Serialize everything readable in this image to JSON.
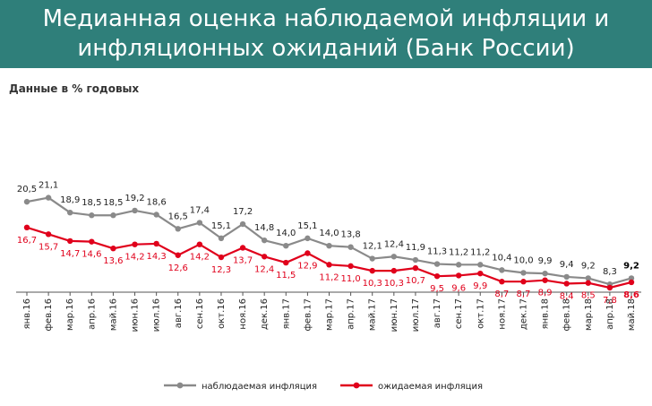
{
  "title_lines": [
    "Медианная оценка наблюдаемой инфляции и",
    "инфляционных ожиданий (Банк России)"
  ],
  "colors": {
    "title_band": "#2f7f7a",
    "observed": "#8a8a8a",
    "expected": "#e0001b"
  },
  "chart_data": {
    "type": "line",
    "subtitle": "Данные в % годовых",
    "categories": [
      "янв.16",
      "фев.16",
      "мар.16",
      "апр.16",
      "май.16",
      "июн.16",
      "июл.16",
      "авг.16",
      "сен.16",
      "окт.16",
      "ноя.16",
      "дек.16",
      "янв.17",
      "фев.17",
      "мар.17",
      "апр.17",
      "май.17",
      "июн.17",
      "июл.17",
      "авг.17",
      "сен.17",
      "окт.17",
      "ноя.17",
      "дек.17",
      "янв.18",
      "фев.18",
      "мар.18",
      "апр.18",
      "май.18"
    ],
    "series": [
      {
        "name": "наблюдаемая инфляция",
        "color": "#8a8a8a",
        "values": [
          20.5,
          21.1,
          18.9,
          18.5,
          18.5,
          19.2,
          18.6,
          16.5,
          17.4,
          15.1,
          17.2,
          14.8,
          14.0,
          15.1,
          14.0,
          13.8,
          12.1,
          12.4,
          11.9,
          11.3,
          11.2,
          11.2,
          10.4,
          10.0,
          9.9,
          9.4,
          9.2,
          8.3,
          9.2
        ],
        "labels": [
          "20,5",
          "21,1",
          "18,9",
          "18,5",
          "18,5",
          "19,2",
          "18,6",
          "16,5",
          "17,4",
          "15,1",
          "17,2",
          "14,8",
          "14,0",
          "15,1",
          "14,0",
          "13,8",
          "12,1",
          "12,4",
          "11,9",
          "11,3",
          "11,2",
          "11,2",
          "10,4",
          "10,0",
          "9,9",
          "9,4",
          "9,2",
          "8,3",
          "9,2"
        ]
      },
      {
        "name": "ожидаемая инфляция",
        "color": "#e0001b",
        "values": [
          16.7,
          15.7,
          14.7,
          14.6,
          13.6,
          14.2,
          14.3,
          12.6,
          14.2,
          12.3,
          13.7,
          12.4,
          11.5,
          12.9,
          11.2,
          11.0,
          10.3,
          10.3,
          10.7,
          9.5,
          9.6,
          9.9,
          8.7,
          8.7,
          8.9,
          8.4,
          8.5,
          7.8,
          8.6
        ],
        "labels": [
          "16,7",
          "15,7",
          "14,7",
          "14,6",
          "13,6",
          "14,2",
          "14,3",
          "12,6",
          "14,2",
          "12,3",
          "13,7",
          "12,4",
          "11,5",
          "12,9",
          "11,2",
          "11,0",
          "10,3",
          "10,3",
          "10,7",
          "9,5",
          "9,6",
          "9,9",
          "8,7",
          "8,7",
          "8,9",
          "8,4",
          "8,5",
          "7,8",
          "8,6"
        ]
      }
    ],
    "legend_position": "bottom",
    "grid": false
  }
}
